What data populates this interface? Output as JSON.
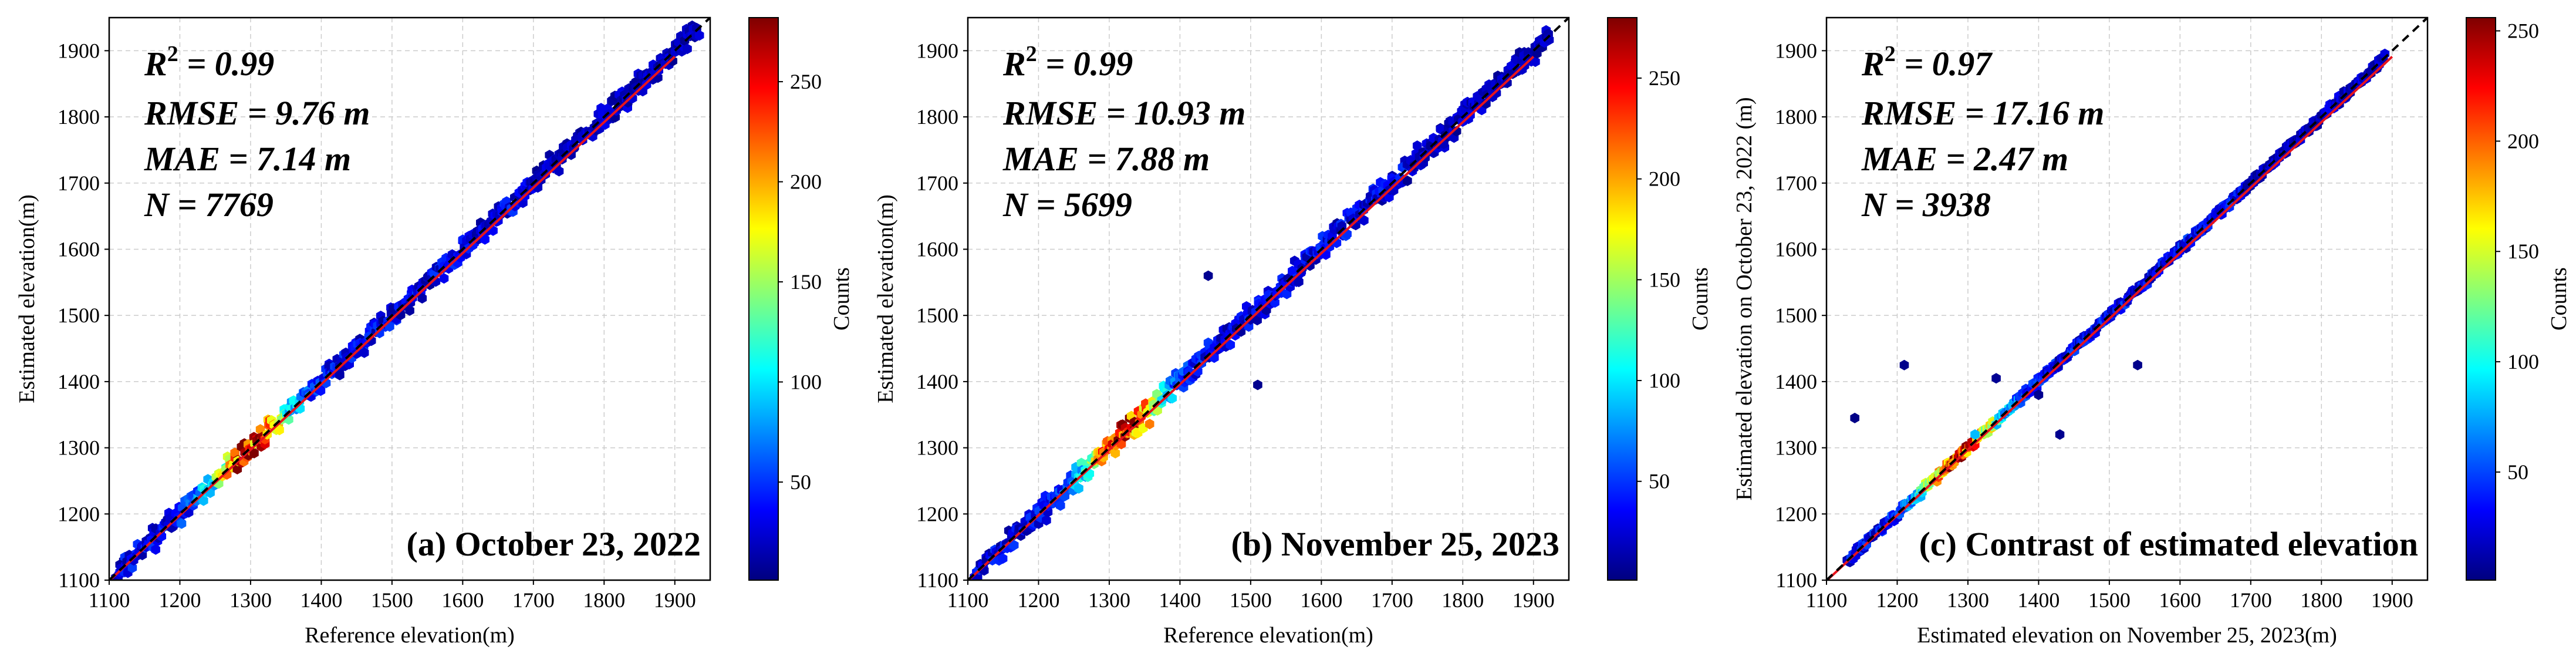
{
  "colors": {
    "regression_line": "#e8141c",
    "identity_line": "#000000",
    "grid": "#cccccc",
    "colormap": [
      "#00007f",
      "#0000ff",
      "#007fff",
      "#00ffff",
      "#7fff7f",
      "#ffff00",
      "#ff7f00",
      "#ff0000",
      "#7f0000"
    ]
  },
  "chart_data": [
    {
      "type": "hexbin-scatter",
      "caption": "(a) October 23, 2022",
      "xlabel": "Reference elevation(m)",
      "ylabel": "Estimated elevation(m)",
      "xlim": [
        1100,
        1950
      ],
      "ylim": [
        1100,
        1950
      ],
      "xticks": [
        1100,
        1200,
        1300,
        1400,
        1500,
        1600,
        1700,
        1800,
        1900
      ],
      "yticks": [
        1100,
        1200,
        1300,
        1400,
        1500,
        1600,
        1700,
        1800,
        1900
      ],
      "stats": {
        "r2_prefix": "R",
        "r2_sup": "2",
        "r2_value": " = 0.99",
        "rmse": "RMSE = 9.76 m",
        "mae": "MAE = 7.14 m",
        "n": "N = 7769"
      },
      "colorbar": {
        "label": "Counts",
        "min": 1,
        "max": 282,
        "ticks": [
          50,
          100,
          150,
          200,
          250
        ]
      },
      "regression": {
        "slope": 0.99,
        "intercept": 10
      },
      "identity_line": true,
      "density_peak": {
        "x": 1300,
        "count": 282
      },
      "scatter_halfwidth": 20,
      "x_range": [
        1110,
        1935
      ],
      "seed": 11,
      "outliers": []
    },
    {
      "type": "hexbin-scatter",
      "caption": "(b) November 25, 2023",
      "xlabel": "Reference elevation(m)",
      "ylabel": "Estimated elevation(m)",
      "xlim": [
        1100,
        1950
      ],
      "ylim": [
        1100,
        1950
      ],
      "xticks": [
        1100,
        1200,
        1300,
        1400,
        1500,
        1600,
        1700,
        1800,
        1900
      ],
      "yticks": [
        1100,
        1200,
        1300,
        1400,
        1500,
        1600,
        1700,
        1800,
        1900
      ],
      "stats": {
        "r2_prefix": "R",
        "r2_sup": "2",
        "r2_value": " = 0.99",
        "rmse": "RMSE = 10.93 m",
        "mae": "MAE = 7.88 m",
        "n": "N = 5699"
      },
      "colorbar": {
        "label": "Counts",
        "min": 1,
        "max": 280,
        "ticks": [
          50,
          100,
          150,
          200,
          250
        ]
      },
      "regression": {
        "slope": 0.99,
        "intercept": 10
      },
      "identity_line": true,
      "density_peak": {
        "x": 1320,
        "count": 280
      },
      "scatter_halfwidth": 22,
      "x_range": [
        1110,
        1925
      ],
      "seed": 23,
      "outliers": [
        {
          "x": 1510,
          "y": 1395,
          "count": 5
        },
        {
          "x": 1440,
          "y": 1560,
          "count": 6
        },
        {
          "x": 1480,
          "y": 1480,
          "count": 8
        }
      ]
    },
    {
      "type": "hexbin-scatter",
      "caption": "(c) Contrast of estimated elevation",
      "xlabel": "Estimated elevation on November 25, 2023(m)",
      "ylabel": "Estimated elevation on October 23, 2022 (m)",
      "xlim": [
        1100,
        1950
      ],
      "ylim": [
        1100,
        1950
      ],
      "xticks": [
        1100,
        1200,
        1300,
        1400,
        1500,
        1600,
        1700,
        1800,
        1900
      ],
      "yticks": [
        1100,
        1200,
        1300,
        1400,
        1500,
        1600,
        1700,
        1800,
        1900
      ],
      "stats": {
        "r2_prefix": "R",
        "r2_sup": "2",
        "r2_value": " = 0.97",
        "rmse": "RMSE = 17.16 m",
        "mae": "MAE = 2.47 m",
        "n": "N = 3938"
      },
      "colorbar": {
        "label": "Counts",
        "min": 1,
        "max": 256,
        "ticks": [
          50,
          100,
          150,
          200,
          250
        ]
      },
      "regression": {
        "slope": 0.99,
        "intercept": 10
      },
      "identity_line": true,
      "density_peak": {
        "x": 1290,
        "count": 256
      },
      "scatter_halfwidth": 8,
      "x_range": [
        1130,
        1890
      ],
      "seed": 37,
      "outliers": [
        {
          "x": 1140,
          "y": 1345,
          "count": 3
        },
        {
          "x": 1210,
          "y": 1425,
          "count": 4
        },
        {
          "x": 1540,
          "y": 1425,
          "count": 4
        },
        {
          "x": 1430,
          "y": 1320,
          "count": 5
        },
        {
          "x": 1340,
          "y": 1405,
          "count": 6
        },
        {
          "x": 1400,
          "y": 1380,
          "count": 5
        },
        {
          "x": 1310,
          "y": 1320,
          "count": 80
        }
      ]
    }
  ]
}
